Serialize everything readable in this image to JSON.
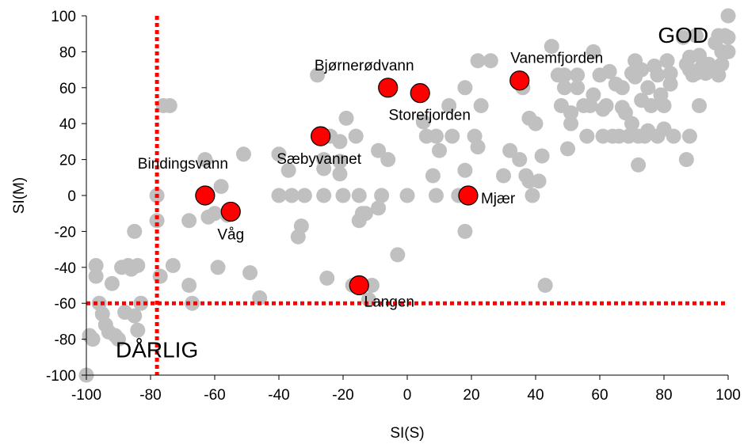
{
  "chart_data": {
    "type": "scatter",
    "title": "",
    "xlabel": "SI(S)",
    "ylabel": "SI(M)",
    "xlim": [
      -100,
      100
    ],
    "ylim": [
      -100,
      100
    ],
    "xticks": [
      -100,
      -80,
      -60,
      -40,
      -20,
      0,
      20,
      40,
      60,
      80,
      100
    ],
    "yticks": [
      -100,
      -80,
      -60,
      -40,
      -20,
      0,
      20,
      40,
      60,
      80,
      100
    ],
    "x_tick_labels": [
      "-100",
      "-80",
      "-60",
      "-40",
      "-20",
      "0",
      "20",
      "40",
      "60",
      "80",
      "100"
    ],
    "y_tick_labels": [
      "-100",
      "-80",
      "-60",
      "-40",
      "-20",
      "0",
      "20",
      "40",
      "60",
      "80",
      "100"
    ],
    "grid": false,
    "reference_lines": {
      "x": -78,
      "y": -60,
      "color": "#ff0000",
      "style": "dotted"
    },
    "annotations": [
      {
        "text": "GOD",
        "x": 86,
        "y": 85
      },
      {
        "text": "DÅRLIG",
        "x": -78,
        "y": -90
      }
    ],
    "colors": {
      "background_points": "#c0c0c0",
      "highlight_points": "#ff0000",
      "reference_lines": "#ff0000"
    },
    "background_points": [
      [
        -100,
        -100
      ],
      [
        -99,
        -78
      ],
      [
        -98,
        -80
      ],
      [
        -97,
        -39
      ],
      [
        -97,
        -45
      ],
      [
        -96,
        -60
      ],
      [
        -95,
        -66
      ],
      [
        -94,
        -72
      ],
      [
        -93,
        -76
      ],
      [
        -92,
        -49
      ],
      [
        -91,
        -78
      ],
      [
        -90,
        -80
      ],
      [
        -89,
        -40
      ],
      [
        -88,
        -65
      ],
      [
        -87,
        -39
      ],
      [
        -86,
        -41
      ],
      [
        -85,
        -20
      ],
      [
        -85,
        -67
      ],
      [
        -84,
        -39
      ],
      [
        -84,
        -75
      ],
      [
        -83,
        -60
      ],
      [
        -78,
        -14
      ],
      [
        -78,
        0
      ],
      [
        -77,
        -45
      ],
      [
        -76,
        50
      ],
      [
        -74,
        50
      ],
      [
        -73,
        -39
      ],
      [
        -68,
        -50
      ],
      [
        -68,
        -14
      ],
      [
        -67,
        -60
      ],
      [
        -63,
        20
      ],
      [
        -62,
        -12
      ],
      [
        -60,
        -10
      ],
      [
        -59,
        -40
      ],
      [
        -58,
        5
      ],
      [
        -56,
        -11
      ],
      [
        -51,
        23
      ],
      [
        -49,
        -43
      ],
      [
        -46,
        -57
      ],
      [
        -40,
        23
      ],
      [
        -40,
        0
      ],
      [
        -37,
        14
      ],
      [
        -36,
        0
      ],
      [
        -34,
        -23
      ],
      [
        -33,
        -17
      ],
      [
        -32,
        0
      ],
      [
        -28,
        67
      ],
      [
        -26,
        20
      ],
      [
        -26,
        0
      ],
      [
        -26,
        15
      ],
      [
        -25,
        -46
      ],
      [
        -24,
        33
      ],
      [
        -21,
        30
      ],
      [
        -21,
        19
      ],
      [
        -21,
        12
      ],
      [
        -20,
        0
      ],
      [
        -19,
        43
      ],
      [
        -17,
        -50
      ],
      [
        -16,
        33
      ],
      [
        -15,
        0
      ],
      [
        -15,
        -14
      ],
      [
        -14,
        -10
      ],
      [
        -13,
        -10
      ],
      [
        -12,
        -58
      ],
      [
        -11,
        -50
      ],
      [
        -9,
        -7
      ],
      [
        -9,
        25
      ],
      [
        -8,
        0
      ],
      [
        -6,
        20
      ],
      [
        -3,
        -33
      ],
      [
        0,
        0
      ],
      [
        5,
        41
      ],
      [
        6,
        33
      ],
      [
        8,
        11
      ],
      [
        9,
        33
      ],
      [
        9,
        0
      ],
      [
        10,
        25
      ],
      [
        13,
        50
      ],
      [
        14,
        33
      ],
      [
        16,
        0
      ],
      [
        18,
        60
      ],
      [
        18,
        14
      ],
      [
        18,
        -20
      ],
      [
        21,
        33
      ],
      [
        22,
        75
      ],
      [
        22,
        27
      ],
      [
        23,
        50
      ],
      [
        26,
        75
      ],
      [
        30,
        11
      ],
      [
        32,
        25
      ],
      [
        35,
        20
      ],
      [
        36,
        60
      ],
      [
        37,
        11
      ],
      [
        38,
        8
      ],
      [
        38,
        43
      ],
      [
        39,
        0
      ],
      [
        40,
        40
      ],
      [
        41,
        8
      ],
      [
        42,
        22
      ],
      [
        43,
        -50
      ],
      [
        45,
        83
      ],
      [
        47,
        67
      ],
      [
        48,
        50
      ],
      [
        49,
        67
      ],
      [
        49,
        60
      ],
      [
        50,
        26
      ],
      [
        51,
        46
      ],
      [
        51,
        40
      ],
      [
        53,
        67
      ],
      [
        53,
        60
      ],
      [
        55,
        50
      ],
      [
        56,
        33
      ],
      [
        57,
        50
      ],
      [
        58,
        80
      ],
      [
        58,
        56
      ],
      [
        60,
        67
      ],
      [
        61,
        48
      ],
      [
        61,
        33
      ],
      [
        62,
        50
      ],
      [
        63,
        69
      ],
      [
        64,
        33
      ],
      [
        65,
        62
      ],
      [
        66,
        33
      ],
      [
        67,
        60
      ],
      [
        67,
        49
      ],
      [
        68,
        46
      ],
      [
        69,
        33
      ],
      [
        70,
        40
      ],
      [
        70,
        68
      ],
      [
        71,
        66
      ],
      [
        71,
        75
      ],
      [
        72,
        33
      ],
      [
        72,
        17
      ],
      [
        73,
        53
      ],
      [
        73,
        70
      ],
      [
        74,
        33
      ],
      [
        75,
        60
      ],
      [
        75,
        36
      ],
      [
        76,
        50
      ],
      [
        77,
        72
      ],
      [
        78,
        33
      ],
      [
        78,
        67
      ],
      [
        79,
        56
      ],
      [
        80,
        37
      ],
      [
        80,
        50
      ],
      [
        81,
        75
      ],
      [
        82,
        62
      ],
      [
        82,
        68
      ],
      [
        83,
        33
      ],
      [
        86,
        88
      ],
      [
        87,
        20
      ],
      [
        87,
        73
      ],
      [
        88,
        33
      ],
      [
        88,
        77
      ],
      [
        88,
        70
      ],
      [
        89,
        67
      ],
      [
        90,
        89
      ],
      [
        90,
        68
      ],
      [
        91,
        78
      ],
      [
        91,
        70
      ],
      [
        91,
        50
      ],
      [
        92,
        72
      ],
      [
        93,
        68
      ],
      [
        94,
        73
      ],
      [
        95,
        70
      ],
      [
        96,
        85
      ],
      [
        97,
        89
      ],
      [
        97,
        67
      ],
      [
        98,
        73
      ],
      [
        98,
        80
      ],
      [
        99,
        89
      ],
      [
        100,
        100
      ],
      [
        100,
        80
      ],
      [
        100,
        88
      ]
    ],
    "series": [
      {
        "name": "",
        "points": [
          {
            "label": "Bindingsvann",
            "x": -63,
            "y": 0
          },
          {
            "label": "Våg",
            "x": -55,
            "y": -9
          },
          {
            "label": "Sæbyvannet",
            "x": -27,
            "y": 33
          },
          {
            "label": "Bjørnerødvann",
            "x": -6,
            "y": 60
          },
          {
            "label": "Storefjorden",
            "x": 4,
            "y": 57
          },
          {
            "label": "Langen",
            "x": -15,
            "y": -50
          },
          {
            "label": "Mjær",
            "x": 19,
            "y": 0
          },
          {
            "label": "Vanemfjorden",
            "x": 35,
            "y": 64
          }
        ]
      }
    ]
  }
}
